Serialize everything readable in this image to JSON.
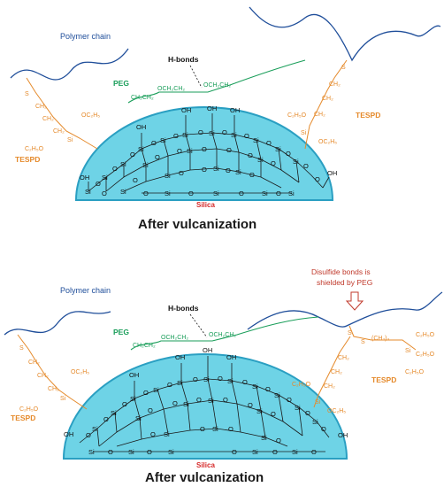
{
  "colors": {
    "silica_fill": "#6ed3e6",
    "silica_stroke": "#2a9fc2",
    "polymer": "#1f4e9a",
    "peg": "#1a9e5a",
    "tespd": "#e58a2b",
    "accent_red": "#d62a2a"
  },
  "labels": {
    "polymer_chain": "Polymer chain",
    "h_bonds": "H-bonds",
    "peg": "PEG",
    "tespd": "TESPD",
    "silica": "Silica",
    "peg_formula_1": "CH₂CH₂",
    "peg_formula_2": "OCH₂CH₂",
    "peg_formula_3": "OCH₂CH₂",
    "oh": "OH",
    "si": "Si",
    "o": "O",
    "ch2": "CH₂",
    "s": "S",
    "oc2h5": "OC₂H₅",
    "c2h5o": "C₂H₅O",
    "ch2_chain": "(CH₂)₃",
    "c2h5o_right": "C₂H₅O"
  },
  "panel_top": {
    "caption": "After vulcanization"
  },
  "panel_bottom": {
    "caption": "After vulcanization",
    "callout": [
      "Disulfide bonds is",
      "shielded by PEG"
    ]
  }
}
